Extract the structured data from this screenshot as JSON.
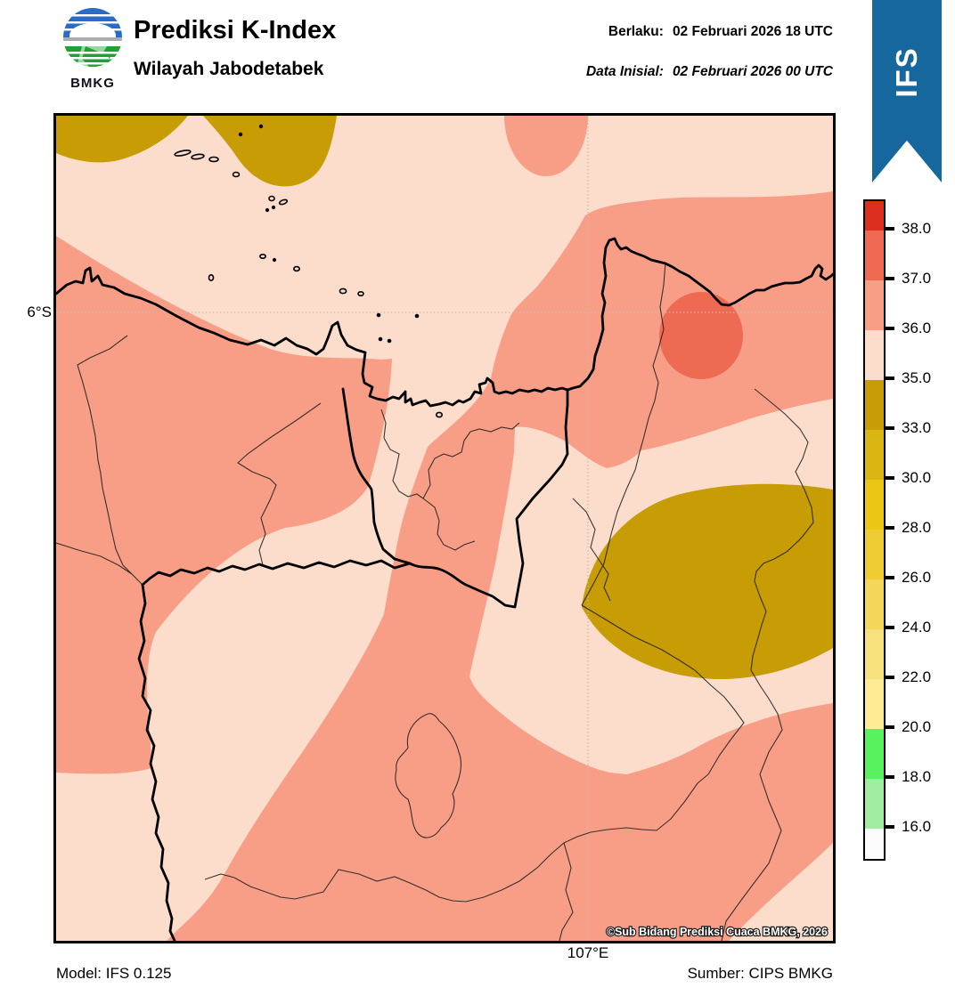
{
  "header": {
    "logo_text": "BMKG",
    "title": "Prediksi K-Index",
    "subtitle": "Wilayah Jabodetabek",
    "berlaku_label": "Berlaku:",
    "berlaku_value": "02 Februari 2026 18 UTC",
    "inisial_label": "Data Inisial:",
    "inisial_value": "02 Februari 2026 00 UTC"
  },
  "ribbon": {
    "label": "IFS",
    "color": "#17679f"
  },
  "map": {
    "lat_label": "6°S",
    "lon_label": "107°E",
    "copyright": "©Sub Bidang Prediksi Cuaca BMKG, 2026",
    "fill_colors": {
      "k35_36_pale": "#fcdccb",
      "k36_37_salmon": "#f89e87",
      "k37_38_red": "#ef6a52",
      "k33_35_olive": "#c79c04"
    }
  },
  "colorbar": {
    "tick_labels": [
      "38.0",
      "37.0",
      "36.0",
      "35.0",
      "33.0",
      "30.0",
      "28.0",
      "26.0",
      "24.0",
      "22.0",
      "20.0",
      "18.0",
      "16.0"
    ],
    "segments": [
      {
        "range": "> 38",
        "color": "#dc2f20"
      },
      {
        "range": "37 - 38",
        "color": "#ef6a52"
      },
      {
        "range": "36 - 37",
        "color": "#f89e87"
      },
      {
        "range": "35 - 36",
        "color": "#fcdccb"
      },
      {
        "range": "33 - 35",
        "color": "#c79c04"
      },
      {
        "range": "30 - 33",
        "color": "#d9b612"
      },
      {
        "range": "28 - 30",
        "color": "#ecc614"
      },
      {
        "range": "26 - 28",
        "color": "#f0cc33"
      },
      {
        "range": "24 - 26",
        "color": "#f4d75a"
      },
      {
        "range": "22 - 24",
        "color": "#f7e07e"
      },
      {
        "range": "20 - 22",
        "color": "#fdeb96"
      },
      {
        "range": "18 - 20",
        "color": "#57f25e"
      },
      {
        "range": "16 - 18",
        "color": "#a0eda2"
      },
      {
        "range": "< 16",
        "color": "#fcfcfc"
      }
    ]
  },
  "footer": {
    "model": "Model: IFS 0.125",
    "source": "Sumber: CIPS BMKG"
  }
}
